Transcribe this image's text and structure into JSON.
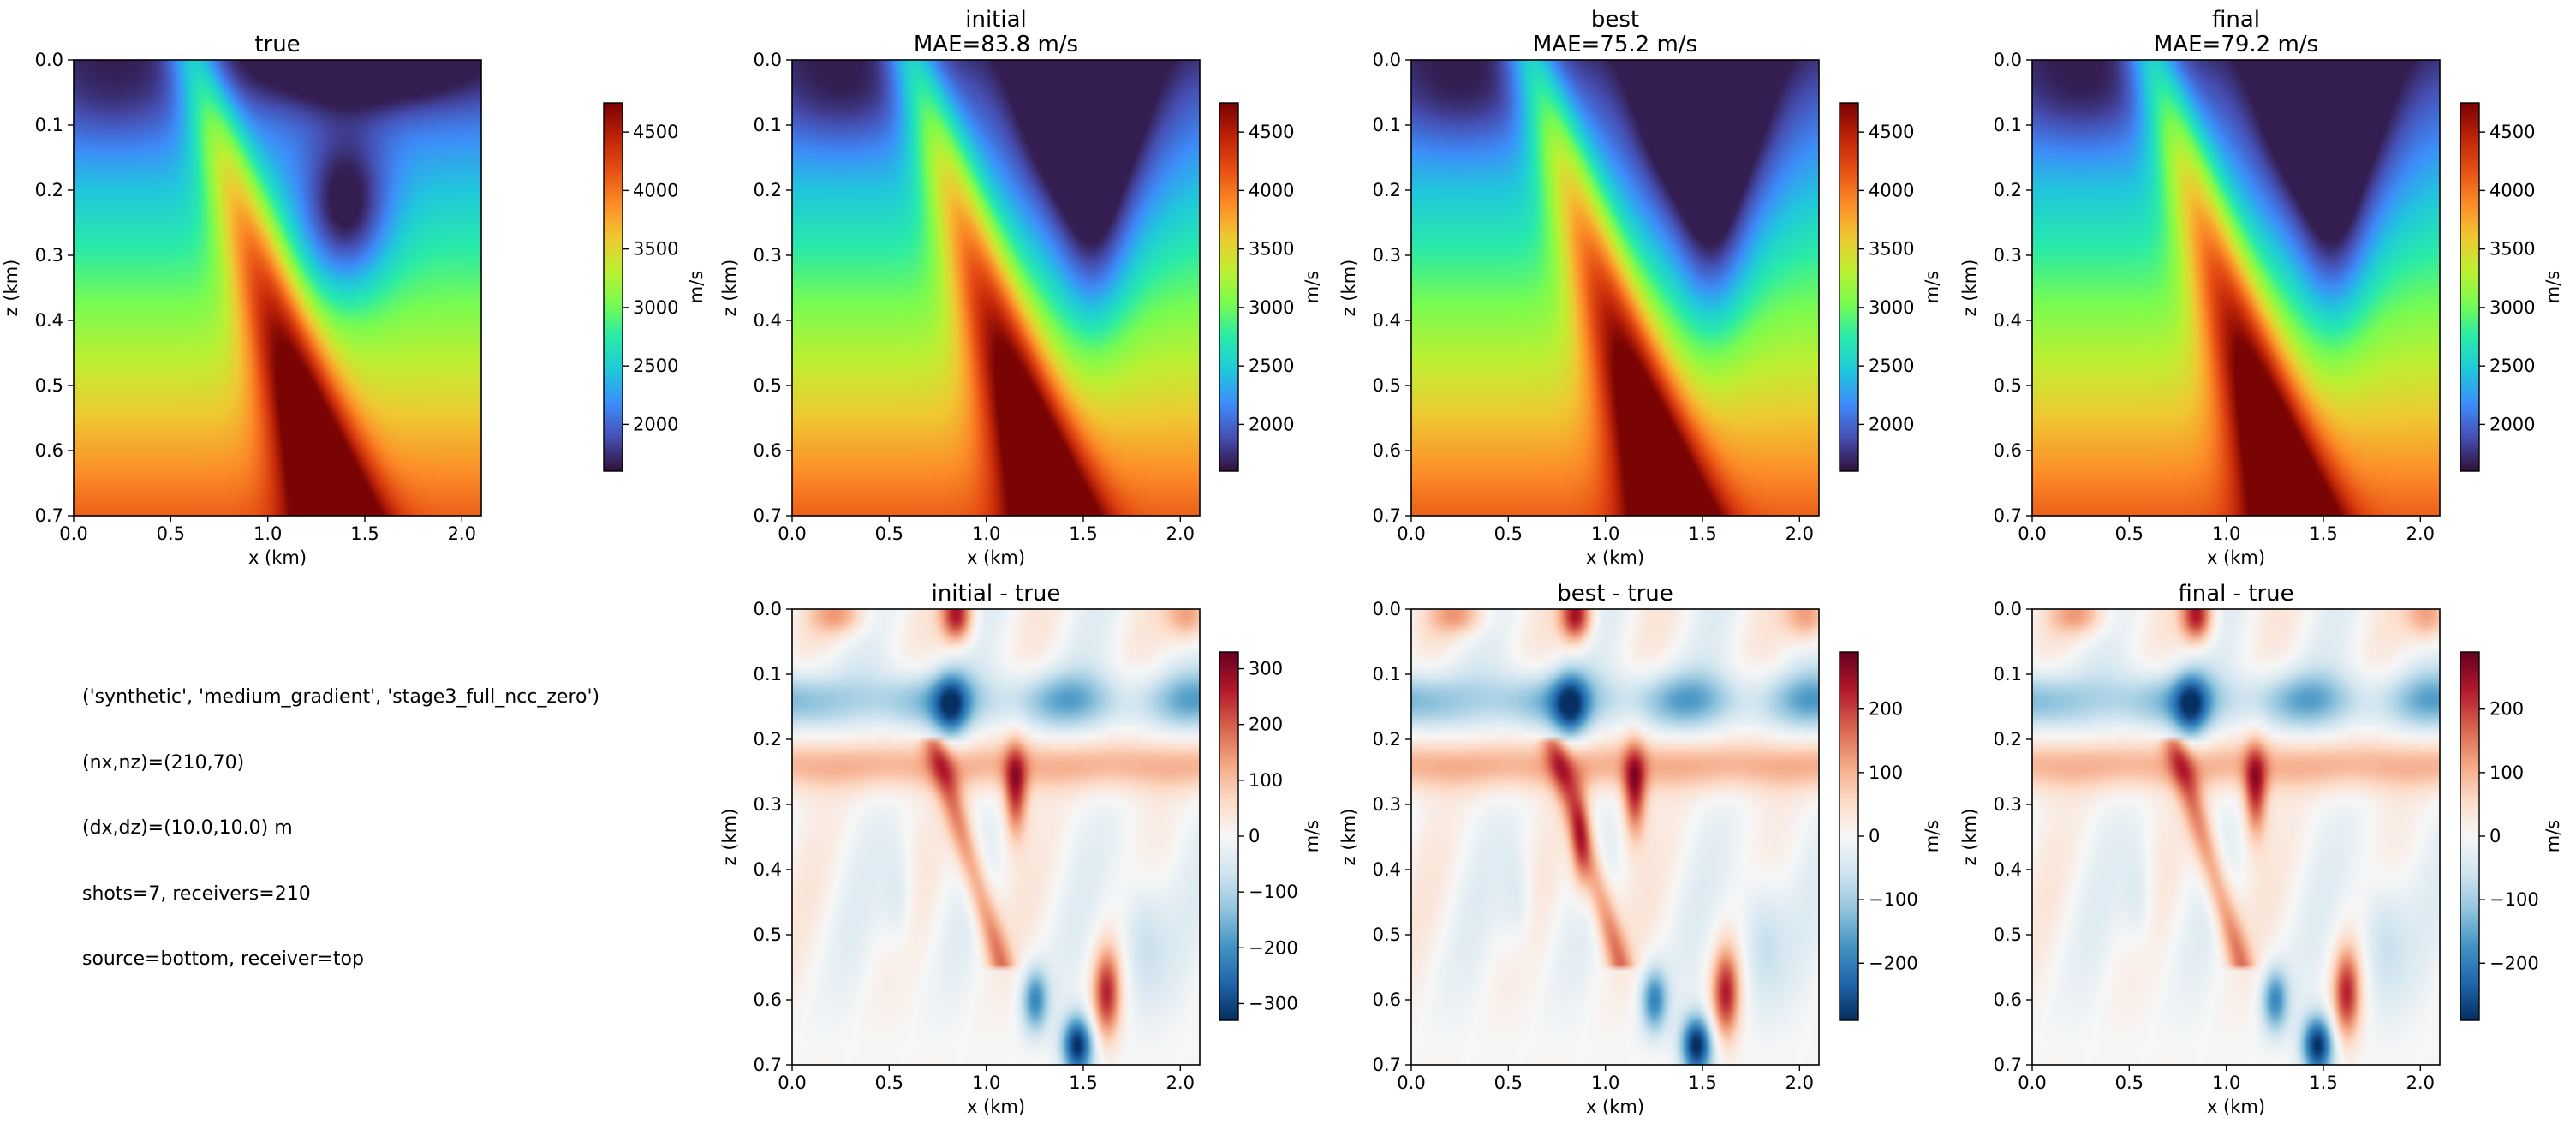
{
  "chart_data": [
    {
      "type": "heatmap",
      "title": "true",
      "field": "true",
      "colormap": "turbo",
      "xlabel": "x (km)",
      "ylabel": "z (km)",
      "xlim": [
        0.0,
        2.1
      ],
      "zlim": [
        0.7,
        0.0
      ],
      "xticks": [
        "0.0",
        "0.5",
        "1.0",
        "1.5",
        "2.0"
      ],
      "zticks": [
        "0.0",
        "0.1",
        "0.2",
        "0.3",
        "0.4",
        "0.5",
        "0.6",
        "0.7"
      ],
      "colorbar": {
        "label": "m/s",
        "range": [
          1600,
          4750
        ],
        "ticks": [
          "2000",
          "2500",
          "3000",
          "3500",
          "4000",
          "4500"
        ]
      }
    },
    {
      "type": "heatmap",
      "title": "initial\nMAE=83.8 m/s",
      "field": "initial",
      "colormap": "turbo",
      "xlabel": "x (km)",
      "ylabel": "z (km)",
      "xlim": [
        0.0,
        2.1
      ],
      "zlim": [
        0.7,
        0.0
      ],
      "xticks": [
        "0.0",
        "0.5",
        "1.0",
        "1.5",
        "2.0"
      ],
      "zticks": [
        "0.0",
        "0.1",
        "0.2",
        "0.3",
        "0.4",
        "0.5",
        "0.6",
        "0.7"
      ],
      "colorbar": {
        "label": "m/s",
        "range": [
          1600,
          4750
        ],
        "ticks": [
          "2000",
          "2500",
          "3000",
          "3500",
          "4000",
          "4500"
        ]
      }
    },
    {
      "type": "heatmap",
      "title": "best\nMAE=75.2 m/s",
      "field": "best",
      "colormap": "turbo",
      "xlabel": "x (km)",
      "ylabel": "z (km)",
      "xlim": [
        0.0,
        2.1
      ],
      "zlim": [
        0.7,
        0.0
      ],
      "xticks": [
        "0.0",
        "0.5",
        "1.0",
        "1.5",
        "2.0"
      ],
      "zticks": [
        "0.0",
        "0.1",
        "0.2",
        "0.3",
        "0.4",
        "0.5",
        "0.6",
        "0.7"
      ],
      "colorbar": {
        "label": "m/s",
        "range": [
          1600,
          4750
        ],
        "ticks": [
          "2000",
          "2500",
          "3000",
          "3500",
          "4000",
          "4500"
        ]
      }
    },
    {
      "type": "heatmap",
      "title": "final\nMAE=79.2 m/s",
      "field": "final",
      "colormap": "turbo",
      "xlabel": "x (km)",
      "ylabel": "z (km)",
      "xlim": [
        0.0,
        2.1
      ],
      "zlim": [
        0.7,
        0.0
      ],
      "xticks": [
        "0.0",
        "0.5",
        "1.0",
        "1.5",
        "2.0"
      ],
      "zticks": [
        "0.0",
        "0.1",
        "0.2",
        "0.3",
        "0.4",
        "0.5",
        "0.6",
        "0.7"
      ],
      "colorbar": {
        "label": "m/s",
        "range": [
          1600,
          4750
        ],
        "ticks": [
          "2000",
          "2500",
          "3000",
          "3500",
          "4000",
          "4500"
        ]
      }
    },
    {
      "type": "heatmap",
      "title": "initial - true",
      "field": "diff_initial",
      "colormap": "RdBu_r",
      "xlabel": "x (km)",
      "ylabel": "z (km)",
      "xlim": [
        0.0,
        2.1
      ],
      "zlim": [
        0.7,
        0.0
      ],
      "xticks": [
        "0.0",
        "0.5",
        "1.0",
        "1.5",
        "2.0"
      ],
      "zticks": [
        "0.0",
        "0.1",
        "0.2",
        "0.3",
        "0.4",
        "0.5",
        "0.6",
        "0.7"
      ],
      "colorbar": {
        "label": "m/s",
        "range": [
          -330,
          330
        ],
        "ticks": [
          "300",
          "200",
          "100",
          "0",
          "−100",
          "−200",
          "−300"
        ]
      }
    },
    {
      "type": "heatmap",
      "title": "best - true",
      "field": "diff_best",
      "colormap": "RdBu_r",
      "xlabel": "x (km)",
      "ylabel": "z (km)",
      "xlim": [
        0.0,
        2.1
      ],
      "zlim": [
        0.7,
        0.0
      ],
      "xticks": [
        "0.0",
        "0.5",
        "1.0",
        "1.5",
        "2.0"
      ],
      "zticks": [
        "0.0",
        "0.1",
        "0.2",
        "0.3",
        "0.4",
        "0.5",
        "0.6",
        "0.7"
      ],
      "colorbar": {
        "label": "m/s",
        "range": [
          -290,
          290
        ],
        "ticks": [
          "200",
          "100",
          "0",
          "−100",
          "−200"
        ]
      }
    },
    {
      "type": "heatmap",
      "title": "final - true",
      "field": "diff_final",
      "colormap": "RdBu_r",
      "xlabel": "x (km)",
      "ylabel": "z (km)",
      "xlim": [
        0.0,
        2.1
      ],
      "zlim": [
        0.7,
        0.0
      ],
      "xticks": [
        "0.0",
        "0.5",
        "1.0",
        "1.5",
        "2.0"
      ],
      "zticks": [
        "0.0",
        "0.1",
        "0.2",
        "0.3",
        "0.4",
        "0.5",
        "0.6",
        "0.7"
      ],
      "colorbar": {
        "label": "m/s",
        "range": [
          -290,
          290
        ],
        "ticks": [
          "200",
          "100",
          "0",
          "−100",
          "−200"
        ]
      }
    }
  ],
  "info_text": [
    "('synthetic', 'medium_gradient', 'stage3_full_ncc_zero')",
    "(nx,nz)=(210,70)",
    "(dx,dz)=(10.0,10.0) m",
    "shots=7, receivers=210",
    "source=bottom, receiver=top"
  ]
}
